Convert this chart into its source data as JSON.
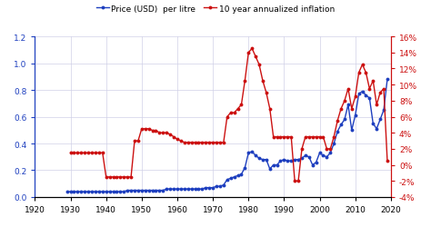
{
  "legend": [
    "Price (USD)  per litre",
    "10 year annualized inflation"
  ],
  "price_data": [
    [
      1929,
      0.04
    ],
    [
      1930,
      0.04
    ],
    [
      1931,
      0.04
    ],
    [
      1932,
      0.04
    ],
    [
      1933,
      0.04
    ],
    [
      1934,
      0.04
    ],
    [
      1935,
      0.04
    ],
    [
      1936,
      0.04
    ],
    [
      1937,
      0.04
    ],
    [
      1938,
      0.04
    ],
    [
      1939,
      0.04
    ],
    [
      1940,
      0.04
    ],
    [
      1941,
      0.04
    ],
    [
      1942,
      0.04
    ],
    [
      1943,
      0.04
    ],
    [
      1944,
      0.04
    ],
    [
      1945,
      0.04
    ],
    [
      1946,
      0.05
    ],
    [
      1947,
      0.05
    ],
    [
      1948,
      0.05
    ],
    [
      1949,
      0.05
    ],
    [
      1950,
      0.05
    ],
    [
      1951,
      0.05
    ],
    [
      1952,
      0.05
    ],
    [
      1953,
      0.05
    ],
    [
      1954,
      0.05
    ],
    [
      1955,
      0.05
    ],
    [
      1956,
      0.05
    ],
    [
      1957,
      0.06
    ],
    [
      1958,
      0.06
    ],
    [
      1959,
      0.06
    ],
    [
      1960,
      0.06
    ],
    [
      1961,
      0.06
    ],
    [
      1962,
      0.06
    ],
    [
      1963,
      0.06
    ],
    [
      1964,
      0.06
    ],
    [
      1965,
      0.06
    ],
    [
      1966,
      0.06
    ],
    [
      1967,
      0.06
    ],
    [
      1968,
      0.07
    ],
    [
      1969,
      0.07
    ],
    [
      1970,
      0.07
    ],
    [
      1971,
      0.08
    ],
    [
      1972,
      0.08
    ],
    [
      1973,
      0.09
    ],
    [
      1974,
      0.13
    ],
    [
      1975,
      0.14
    ],
    [
      1976,
      0.15
    ],
    [
      1977,
      0.16
    ],
    [
      1978,
      0.17
    ],
    [
      1979,
      0.22
    ],
    [
      1980,
      0.33
    ],
    [
      1981,
      0.34
    ],
    [
      1982,
      0.31
    ],
    [
      1983,
      0.29
    ],
    [
      1984,
      0.28
    ],
    [
      1985,
      0.28
    ],
    [
      1986,
      0.21
    ],
    [
      1987,
      0.24
    ],
    [
      1988,
      0.24
    ],
    [
      1989,
      0.27
    ],
    [
      1990,
      0.28
    ],
    [
      1991,
      0.27
    ],
    [
      1992,
      0.27
    ],
    [
      1993,
      0.28
    ],
    [
      1994,
      0.28
    ],
    [
      1995,
      0.29
    ],
    [
      1996,
      0.31
    ],
    [
      1997,
      0.3
    ],
    [
      1998,
      0.24
    ],
    [
      1999,
      0.26
    ],
    [
      2000,
      0.33
    ],
    [
      2001,
      0.31
    ],
    [
      2002,
      0.3
    ],
    [
      2003,
      0.33
    ],
    [
      2004,
      0.4
    ],
    [
      2005,
      0.49
    ],
    [
      2006,
      0.54
    ],
    [
      2007,
      0.58
    ],
    [
      2008,
      0.69
    ],
    [
      2009,
      0.5
    ],
    [
      2010,
      0.61
    ],
    [
      2011,
      0.77
    ],
    [
      2012,
      0.79
    ],
    [
      2013,
      0.76
    ],
    [
      2014,
      0.74
    ],
    [
      2015,
      0.55
    ],
    [
      2016,
      0.51
    ],
    [
      2017,
      0.58
    ],
    [
      2018,
      0.65
    ],
    [
      2019,
      0.88
    ]
  ],
  "inflation_data": [
    [
      1930,
      1.5
    ],
    [
      1931,
      1.5
    ],
    [
      1932,
      1.5
    ],
    [
      1933,
      1.5
    ],
    [
      1934,
      1.5
    ],
    [
      1935,
      1.5
    ],
    [
      1936,
      1.5
    ],
    [
      1937,
      1.5
    ],
    [
      1938,
      1.5
    ],
    [
      1939,
      1.5
    ],
    [
      1940,
      -1.5
    ],
    [
      1941,
      -1.5
    ],
    [
      1942,
      -1.5
    ],
    [
      1943,
      -1.5
    ],
    [
      1944,
      -1.5
    ],
    [
      1945,
      -1.5
    ],
    [
      1946,
      -1.5
    ],
    [
      1947,
      -1.5
    ],
    [
      1948,
      3.0
    ],
    [
      1949,
      3.0
    ],
    [
      1950,
      4.5
    ],
    [
      1951,
      4.5
    ],
    [
      1952,
      4.5
    ],
    [
      1953,
      4.3
    ],
    [
      1954,
      4.3
    ],
    [
      1955,
      4.0
    ],
    [
      1956,
      4.0
    ],
    [
      1957,
      4.0
    ],
    [
      1958,
      3.8
    ],
    [
      1959,
      3.5
    ],
    [
      1960,
      3.2
    ],
    [
      1961,
      3.0
    ],
    [
      1962,
      2.8
    ],
    [
      1963,
      2.8
    ],
    [
      1964,
      2.8
    ],
    [
      1965,
      2.8
    ],
    [
      1966,
      2.8
    ],
    [
      1967,
      2.8
    ],
    [
      1968,
      2.8
    ],
    [
      1969,
      2.8
    ],
    [
      1970,
      2.8
    ],
    [
      1971,
      2.8
    ],
    [
      1972,
      2.8
    ],
    [
      1973,
      2.8
    ],
    [
      1974,
      6.0
    ],
    [
      1975,
      6.5
    ],
    [
      1976,
      6.5
    ],
    [
      1977,
      7.0
    ],
    [
      1978,
      7.5
    ],
    [
      1979,
      10.5
    ],
    [
      1980,
      14.0
    ],
    [
      1981,
      14.5
    ],
    [
      1982,
      13.5
    ],
    [
      1983,
      12.5
    ],
    [
      1984,
      10.5
    ],
    [
      1985,
      9.0
    ],
    [
      1986,
      7.0
    ],
    [
      1987,
      3.5
    ],
    [
      1988,
      3.5
    ],
    [
      1989,
      3.5
    ],
    [
      1990,
      3.5
    ],
    [
      1991,
      3.5
    ],
    [
      1992,
      3.5
    ],
    [
      1993,
      -2.0
    ],
    [
      1994,
      -2.0
    ],
    [
      1995,
      2.0
    ],
    [
      1996,
      3.5
    ],
    [
      1997,
      3.5
    ],
    [
      1998,
      3.5
    ],
    [
      1999,
      3.5
    ],
    [
      2000,
      3.5
    ],
    [
      2001,
      3.5
    ],
    [
      2002,
      2.0
    ],
    [
      2003,
      2.0
    ],
    [
      2004,
      3.5
    ],
    [
      2005,
      5.5
    ],
    [
      2006,
      7.0
    ],
    [
      2007,
      8.0
    ],
    [
      2008,
      9.5
    ],
    [
      2009,
      7.0
    ],
    [
      2010,
      8.5
    ],
    [
      2011,
      11.5
    ],
    [
      2012,
      12.5
    ],
    [
      2013,
      11.5
    ],
    [
      2014,
      9.5
    ],
    [
      2015,
      10.5
    ],
    [
      2016,
      7.5
    ],
    [
      2017,
      9.0
    ],
    [
      2018,
      9.5
    ],
    [
      2019,
      0.5
    ]
  ],
  "price_color": "#1E3FBF",
  "inflation_color": "#CC1111",
  "xlim": [
    1920,
    2020
  ],
  "ylim_left": [
    0,
    1.2
  ],
  "ylim_right": [
    -4,
    16
  ],
  "yticks_left": [
    0,
    0.2,
    0.4,
    0.6,
    0.8,
    1.0,
    1.2
  ],
  "yticks_right": [
    -4,
    -2,
    0,
    2,
    4,
    6,
    8,
    10,
    12,
    14,
    16
  ],
  "ytick_labels_right": [
    "-4%",
    "-2%",
    "0%",
    "2%",
    "4%",
    "6%",
    "8%",
    "10%",
    "12%",
    "14%",
    "16%"
  ],
  "xticks": [
    1920,
    1930,
    1940,
    1950,
    1960,
    1970,
    1980,
    1990,
    2000,
    2010,
    2020
  ],
  "background_color": "#ffffff",
  "grid_color": "#d0d0e8",
  "marker_size": 2.8,
  "line_width": 1.0
}
